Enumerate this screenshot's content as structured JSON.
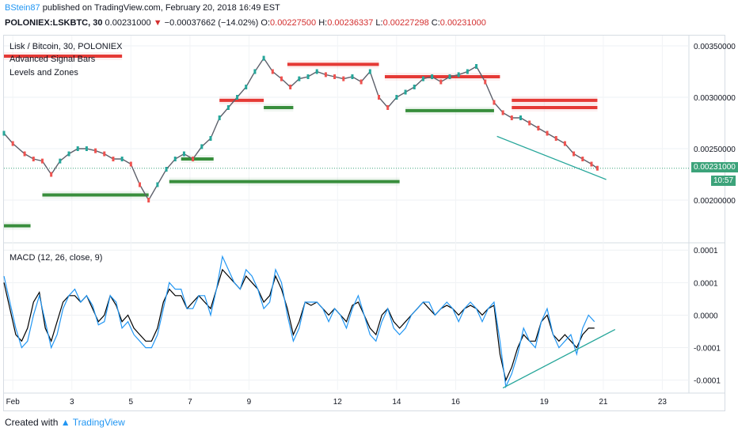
{
  "header": {
    "username": "BStein87",
    "published_text": "published on TradingView.com, February 20, 2018 16:49 EST",
    "symbol": "POLONIEX:LSKBTC, 30",
    "last": "0.00231000",
    "change": "−0.00037662 (−14.02%)",
    "open_label": "O:",
    "open": "0.00227500",
    "high_label": "H:",
    "high": "0.00236337",
    "low_label": "L:",
    "low": "0.00227298",
    "close_label": "C:",
    "close": "0.00231000"
  },
  "legend": {
    "title": "Lisk / Bitcoin, 30, POLONIEX",
    "ind1": "Advanced Signal Bars",
    "ind2": "Levels and Zones",
    "macd": "MACD (12, 26, close, 9)"
  },
  "price_tag": {
    "value": "0.00231000",
    "countdown": "10:57"
  },
  "footer": {
    "created": "Created with",
    "brand": "TradingView"
  },
  "colors": {
    "up": "#26a69a",
    "down": "#ef5350",
    "resistance": "#e53935",
    "support": "#388e3c",
    "macd": "#000000",
    "signal": "#2196f3",
    "trend": "#26a69a"
  },
  "chart_data": [
    {
      "type": "line",
      "title": "Lisk / Bitcoin, 30, POLONIEX",
      "x_tick_labels": [
        "Feb",
        "3",
        "5",
        "7",
        "9",
        "12",
        "14",
        "16",
        "19",
        "21",
        "23"
      ],
      "x_ticks_day": [
        1,
        3,
        5,
        7,
        9,
        12,
        14,
        16,
        19,
        21,
        23
      ],
      "y_tick_labels": [
        "0.00350000",
        "0.00300000",
        "0.00250000",
        "0.00200000"
      ],
      "ylim": [
        0.0016,
        0.0036
      ],
      "xlim": [
        0.7,
        23.9
      ],
      "series": [
        {
          "x": [
            0.7,
            1.0,
            1.4,
            1.7,
            2.0,
            2.3,
            2.6,
            2.9,
            3.2,
            3.5,
            3.8,
            4.1,
            4.4,
            4.7,
            5.0,
            5.3,
            5.6,
            5.9,
            6.2,
            6.5,
            6.8,
            7.1,
            7.4,
            7.7,
            8.0,
            8.3,
            8.6,
            8.9,
            9.2,
            9.5,
            9.8,
            10.1,
            10.4,
            10.7,
            11.0,
            11.3,
            11.6,
            11.9,
            12.2,
            12.5,
            12.8,
            13.1,
            13.4,
            13.7,
            14.0,
            14.3,
            14.6,
            14.9,
            15.2,
            15.5,
            15.8,
            16.1,
            16.4,
            16.7,
            17.0,
            17.3,
            17.6,
            17.9,
            18.2,
            18.5,
            18.8,
            19.1,
            19.4,
            19.7,
            20.0,
            20.3,
            20.6,
            20.8
          ],
          "y": [
            0.00265,
            0.00255,
            0.00245,
            0.0024,
            0.00238,
            0.00225,
            0.00238,
            0.00245,
            0.0025,
            0.0025,
            0.00248,
            0.00245,
            0.0024,
            0.0024,
            0.00235,
            0.00215,
            0.002,
            0.00215,
            0.0023,
            0.0024,
            0.00245,
            0.0024,
            0.00252,
            0.0026,
            0.0028,
            0.0029,
            0.003,
            0.0031,
            0.00325,
            0.00338,
            0.00325,
            0.00318,
            0.0031,
            0.00318,
            0.0032,
            0.00325,
            0.00322,
            0.0032,
            0.00318,
            0.0032,
            0.00315,
            0.00325,
            0.003,
            0.0029,
            0.003,
            0.00305,
            0.0031,
            0.00318,
            0.0032,
            0.00315,
            0.0032,
            0.00322,
            0.00325,
            0.0033,
            0.00315,
            0.00295,
            0.00285,
            0.0028,
            0.0028,
            0.00275,
            0.0027,
            0.00265,
            0.0026,
            0.00255,
            0.00245,
            0.0024,
            0.00235,
            0.00231
          ]
        }
      ],
      "levels": [
        {
          "kind": "resistance",
          "y": 0.0034,
          "x": [
            0.7,
            4.7
          ]
        },
        {
          "kind": "resistance",
          "y": 0.00332,
          "x": [
            10.3,
            13.4
          ]
        },
        {
          "kind": "resistance",
          "y": 0.0032,
          "x": [
            13.6,
            17.5
          ]
        },
        {
          "kind": "resistance",
          "y": 0.00297,
          "x": [
            17.9,
            20.8
          ]
        },
        {
          "kind": "resistance",
          "y": 0.0029,
          "x": [
            17.9,
            20.8
          ]
        },
        {
          "kind": "resistance",
          "y": 0.00297,
          "x": [
            8.0,
            9.5
          ]
        },
        {
          "kind": "support",
          "y": 0.0029,
          "x": [
            9.5,
            10.5
          ]
        },
        {
          "kind": "support",
          "y": 0.00287,
          "x": [
            14.3,
            17.3
          ]
        },
        {
          "kind": "support",
          "y": 0.00218,
          "x": [
            6.3,
            14.1
          ]
        },
        {
          "kind": "support",
          "y": 0.00205,
          "x": [
            2.0,
            5.6
          ]
        },
        {
          "kind": "support",
          "y": 0.0024,
          "x": [
            6.7,
            7.8
          ]
        },
        {
          "kind": "support",
          "y": 0.00175,
          "x": [
            0.7,
            1.6
          ]
        }
      ],
      "trendline": {
        "x": [
          17.4,
          21.1
        ],
        "y": [
          0.00262,
          0.0022
        ]
      }
    },
    {
      "type": "line",
      "title": "MACD (12, 26, close, 9)",
      "y_tick_labels": [
        "0.0001",
        "0.0001",
        "0.0000",
        "-0.0001",
        "-0.0001"
      ],
      "y_ticks": [
        0.0001,
        5e-05,
        0.0,
        -5e-05,
        -0.0001
      ],
      "ylim": [
        -0.000115,
        0.00011
      ],
      "series": [
        {
          "name": "MACD",
          "x": [
            0.7,
            0.9,
            1.1,
            1.3,
            1.5,
            1.7,
            1.9,
            2.1,
            2.3,
            2.5,
            2.7,
            2.9,
            3.1,
            3.3,
            3.5,
            3.7,
            3.9,
            4.1,
            4.3,
            4.5,
            4.7,
            4.9,
            5.1,
            5.3,
            5.5,
            5.7,
            5.9,
            6.1,
            6.3,
            6.5,
            6.7,
            6.9,
            7.1,
            7.3,
            7.5,
            7.7,
            7.9,
            8.1,
            8.3,
            8.5,
            8.7,
            8.9,
            9.1,
            9.3,
            9.5,
            9.7,
            9.9,
            10.1,
            10.3,
            10.5,
            10.7,
            10.9,
            11.1,
            11.3,
            11.5,
            11.7,
            11.9,
            12.1,
            12.3,
            12.5,
            12.7,
            12.9,
            13.1,
            13.3,
            13.5,
            13.7,
            13.9,
            14.1,
            14.3,
            14.5,
            14.7,
            14.9,
            15.1,
            15.3,
            15.5,
            15.7,
            15.9,
            16.1,
            16.3,
            16.5,
            16.7,
            16.9,
            17.1,
            17.3,
            17.5,
            17.7,
            17.9,
            18.1,
            18.3,
            18.5,
            18.7,
            18.9,
            19.1,
            19.3,
            19.5,
            19.7,
            19.9,
            20.1,
            20.3,
            20.5,
            20.7
          ],
          "y": [
            5e-05,
            1e-05,
            -3e-05,
            -4e-05,
            -2e-05,
            2e-05,
            3.5e-05,
            -2e-05,
            -4e-05,
            -1e-05,
            2e-05,
            3e-05,
            3e-05,
            2e-05,
            3e-05,
            1e-05,
            -1e-05,
            0.0,
            3e-05,
            1.5e-05,
            -1e-05,
            0.0,
            -2e-05,
            -3e-05,
            -4e-05,
            -4e-05,
            -2e-05,
            2e-05,
            4e-05,
            3e-05,
            3e-05,
            1e-05,
            2e-05,
            3e-05,
            2e-05,
            1e-05,
            4e-05,
            7e-05,
            6e-05,
            5e-05,
            4e-05,
            6e-05,
            5e-05,
            4e-05,
            2e-05,
            3e-05,
            6e-05,
            4e-05,
            1e-05,
            -3e-05,
            -1e-05,
            2e-05,
            1.5e-05,
            2e-05,
            1e-05,
            0.0,
            1e-05,
            0.0,
            -1e-05,
            1.5e-05,
            2e-05,
            0.0,
            -2e-05,
            -3e-05,
            0.0,
            1e-05,
            -1e-05,
            -2e-05,
            -1e-05,
            0.0,
            1e-05,
            2e-05,
            1e-05,
            0.0,
            1e-05,
            1.5e-05,
            1e-05,
            0.0,
            1e-05,
            1.5e-05,
            1e-05,
            0.0,
            1e-05,
            1.5e-05,
            -6e-05,
            -0.0001,
            -8e-05,
            -5e-05,
            -3e-05,
            -4e-05,
            -4e-05,
            -1e-05,
            0.0,
            -3e-05,
            -4e-05,
            -3e-05,
            -4e-05,
            -5e-05,
            -3e-05,
            -2e-05,
            -2e-05
          ]
        },
        {
          "name": "Signal",
          "x": [
            0.7,
            0.9,
            1.1,
            1.3,
            1.5,
            1.7,
            1.9,
            2.1,
            2.3,
            2.5,
            2.7,
            2.9,
            3.1,
            3.3,
            3.5,
            3.7,
            3.9,
            4.1,
            4.3,
            4.5,
            4.7,
            4.9,
            5.1,
            5.3,
            5.5,
            5.7,
            5.9,
            6.1,
            6.3,
            6.5,
            6.7,
            6.9,
            7.1,
            7.3,
            7.5,
            7.7,
            7.9,
            8.1,
            8.3,
            8.5,
            8.7,
            8.9,
            9.1,
            9.3,
            9.5,
            9.7,
            9.9,
            10.1,
            10.3,
            10.5,
            10.7,
            10.9,
            11.1,
            11.3,
            11.5,
            11.7,
            11.9,
            12.1,
            12.3,
            12.5,
            12.7,
            12.9,
            13.1,
            13.3,
            13.5,
            13.7,
            13.9,
            14.1,
            14.3,
            14.5,
            14.7,
            14.9,
            15.1,
            15.3,
            15.5,
            15.7,
            15.9,
            16.1,
            16.3,
            16.5,
            16.7,
            16.9,
            17.1,
            17.3,
            17.5,
            17.7,
            17.9,
            18.1,
            18.3,
            18.5,
            18.7,
            18.9,
            19.1,
            19.3,
            19.5,
            19.7,
            19.9,
            20.1,
            20.3,
            20.5,
            20.7
          ],
          "y": [
            6e-05,
            2e-05,
            -2e-05,
            -5e-05,
            -4e-05,
            0.0,
            3e-05,
            -1e-05,
            -5e-05,
            -3e-05,
            1e-05,
            3e-05,
            4e-05,
            2e-05,
            3e-05,
            1.5e-05,
            -1.5e-05,
            -1e-05,
            3e-05,
            2e-05,
            -2e-05,
            -1e-05,
            -3e-05,
            -4e-05,
            -5e-05,
            -5e-05,
            -3e-05,
            1e-05,
            5e-05,
            4e-05,
            4e-05,
            1e-05,
            1e-05,
            3e-05,
            3e-05,
            0.0,
            4e-05,
            9e-05,
            7e-05,
            5e-05,
            4e-05,
            7e-05,
            6e-05,
            4e-05,
            1e-05,
            2e-05,
            7e-05,
            5e-05,
            0.0,
            -4e-05,
            -2e-05,
            2e-05,
            2e-05,
            2e-05,
            1e-05,
            -1e-05,
            1e-05,
            0.0,
            -2e-05,
            1e-05,
            3e-05,
            0.0,
            -3e-05,
            -4e-05,
            -1e-05,
            1e-05,
            -2e-05,
            -3e-05,
            -2e-05,
            0.0,
            1e-05,
            2e-05,
            2e-05,
            0.0,
            1e-05,
            2e-05,
            1e-05,
            -1e-05,
            1e-05,
            2e-05,
            1e-05,
            -1e-05,
            1e-05,
            2e-05,
            -4e-05,
            -0.00011,
            -9e-05,
            -6e-05,
            -2e-05,
            -4e-05,
            -5e-05,
            -1e-05,
            1e-05,
            -3e-05,
            -5e-05,
            -4e-05,
            -3e-05,
            -6e-05,
            -2e-05,
            0.0,
            -1e-05
          ]
        }
      ],
      "trendline": {
        "x": [
          17.6,
          21.4
        ],
        "y": [
          -0.000112,
          -2.2e-05
        ]
      }
    }
  ]
}
